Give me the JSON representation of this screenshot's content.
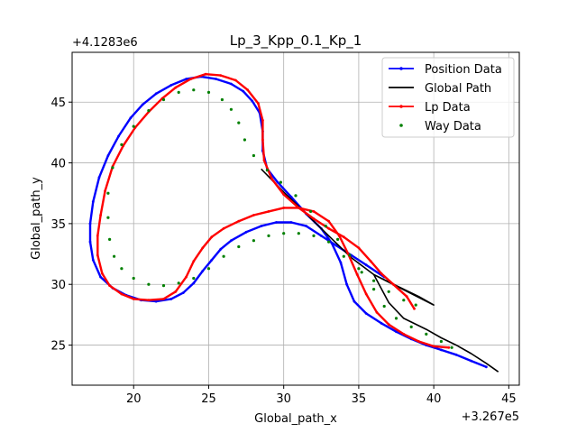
{
  "chart_data": {
    "type": "line",
    "title": "Lp_3_Kpp_0.1_Kp_1",
    "xlabel": "Global_path_x",
    "ylabel": "Global_path_y",
    "x_offset_label": "+3.267e5",
    "y_offset_label": "+4.1283e6",
    "xlim": [
      15.9,
      45.7
    ],
    "ylim": [
      21.7,
      49.1
    ],
    "xticks": [
      20,
      25,
      30,
      35,
      40,
      45
    ],
    "yticks": [
      25,
      30,
      35,
      40,
      45
    ],
    "grid": true,
    "legend_position": "top-right",
    "series": [
      {
        "name": "Position Data",
        "color": "#0000ff",
        "style": "line-markers",
        "points": [
          [
            36.7,
            30.6
          ],
          [
            35.5,
            31.6
          ],
          [
            34.5,
            32.4
          ],
          [
            33.5,
            33.2
          ],
          [
            32.5,
            34.0
          ],
          [
            31.5,
            34.8
          ],
          [
            30.5,
            35.1
          ],
          [
            29.5,
            35.1
          ],
          [
            28.5,
            34.8
          ],
          [
            27.5,
            34.3
          ],
          [
            26.5,
            33.6
          ],
          [
            25.8,
            32.9
          ],
          [
            25.2,
            32.0
          ],
          [
            24.6,
            31.1
          ],
          [
            24.0,
            30.1
          ],
          [
            23.3,
            29.3
          ],
          [
            22.5,
            28.8
          ],
          [
            21.5,
            28.6
          ],
          [
            20.5,
            28.7
          ],
          [
            19.5,
            29.1
          ],
          [
            18.6,
            29.7
          ],
          [
            17.8,
            30.6
          ],
          [
            17.3,
            32.0
          ],
          [
            17.1,
            33.5
          ],
          [
            17.1,
            35.0
          ],
          [
            17.3,
            36.8
          ],
          [
            17.7,
            38.8
          ],
          [
            18.3,
            40.6
          ],
          [
            19.0,
            42.2
          ],
          [
            19.8,
            43.7
          ],
          [
            20.6,
            44.8
          ],
          [
            21.5,
            45.7
          ],
          [
            22.5,
            46.4
          ],
          [
            23.5,
            46.9
          ],
          [
            24.5,
            47.1
          ],
          [
            25.5,
            46.9
          ],
          [
            26.5,
            46.5
          ],
          [
            27.3,
            45.9
          ],
          [
            27.9,
            45.1
          ],
          [
            28.4,
            44.1
          ],
          [
            28.6,
            42.6
          ],
          [
            28.6,
            41.0
          ],
          [
            28.9,
            39.5
          ],
          [
            29.6,
            38.4
          ],
          [
            30.5,
            37.2
          ],
          [
            31.5,
            35.8
          ],
          [
            32.5,
            34.6
          ],
          [
            33.2,
            33.4
          ],
          [
            33.8,
            31.8
          ],
          [
            34.2,
            30.0
          ],
          [
            34.7,
            28.6
          ],
          [
            35.5,
            27.6
          ],
          [
            36.5,
            26.8
          ],
          [
            37.5,
            26.1
          ],
          [
            38.5,
            25.5
          ],
          [
            39.5,
            25.0
          ],
          [
            40.5,
            24.6
          ],
          [
            41.5,
            24.2
          ],
          [
            42.5,
            23.7
          ],
          [
            43.5,
            23.2
          ]
        ]
      },
      {
        "name": "Global Path",
        "color": "#000000",
        "style": "line",
        "points": [
          [
            28.5,
            39.5
          ],
          [
            30.0,
            37.6
          ],
          [
            31.5,
            35.8
          ],
          [
            33.0,
            34.0
          ],
          [
            34.5,
            32.2
          ],
          [
            36.0,
            30.8
          ],
          [
            37.5,
            29.9
          ],
          [
            39.0,
            29.0
          ],
          [
            40.0,
            28.3
          ],
          [
            36.0,
            30.8
          ],
          [
            37.0,
            28.5
          ],
          [
            38.0,
            27.2
          ],
          [
            39.5,
            26.3
          ],
          [
            40.5,
            25.6
          ],
          [
            41.5,
            25.0
          ],
          [
            42.5,
            24.3
          ],
          [
            43.5,
            23.5
          ],
          [
            44.3,
            22.8
          ]
        ]
      },
      {
        "name": "Lp Data",
        "color": "#ff0000",
        "style": "line-markers",
        "points": [
          [
            41.0,
            24.8
          ],
          [
            40.0,
            24.9
          ],
          [
            39.0,
            25.3
          ],
          [
            38.0,
            25.9
          ],
          [
            37.0,
            26.7
          ],
          [
            36.2,
            27.7
          ],
          [
            35.5,
            29.2
          ],
          [
            34.9,
            30.8
          ],
          [
            34.3,
            32.5
          ],
          [
            33.7,
            34.0
          ],
          [
            33.0,
            35.2
          ],
          [
            32.0,
            36.0
          ],
          [
            31.0,
            36.3
          ],
          [
            30.0,
            36.3
          ],
          [
            29.0,
            36.0
          ],
          [
            28.0,
            35.7
          ],
          [
            27.0,
            35.2
          ],
          [
            26.0,
            34.6
          ],
          [
            25.2,
            33.9
          ],
          [
            24.6,
            33.0
          ],
          [
            24.0,
            31.9
          ],
          [
            23.5,
            30.6
          ],
          [
            22.8,
            29.4
          ],
          [
            22.0,
            28.8
          ],
          [
            21.0,
            28.7
          ],
          [
            20.0,
            28.8
          ],
          [
            19.2,
            29.2
          ],
          [
            18.4,
            29.9
          ],
          [
            17.9,
            30.9
          ],
          [
            17.6,
            32.4
          ],
          [
            17.6,
            34.0
          ],
          [
            17.8,
            35.7
          ],
          [
            18.1,
            37.7
          ],
          [
            18.6,
            39.7
          ],
          [
            19.3,
            41.4
          ],
          [
            20.1,
            42.9
          ],
          [
            21.0,
            44.2
          ],
          [
            21.9,
            45.3
          ],
          [
            22.8,
            46.2
          ],
          [
            23.8,
            46.9
          ],
          [
            24.8,
            47.3
          ],
          [
            25.8,
            47.2
          ],
          [
            26.8,
            46.8
          ],
          [
            27.6,
            46.0
          ],
          [
            28.3,
            44.9
          ],
          [
            28.6,
            43.5
          ],
          [
            28.6,
            41.9
          ],
          [
            28.7,
            40.2
          ],
          [
            29.2,
            38.7
          ],
          [
            30.0,
            37.4
          ],
          [
            31.0,
            36.3
          ],
          [
            32.0,
            35.4
          ],
          [
            33.0,
            34.6
          ],
          [
            34.0,
            33.9
          ],
          [
            35.0,
            33.0
          ],
          [
            35.8,
            31.9
          ],
          [
            36.5,
            30.9
          ],
          [
            37.3,
            30.0
          ],
          [
            38.2,
            29.0
          ],
          [
            38.7,
            28.0
          ]
        ]
      },
      {
        "name": "Way Data",
        "color": "#008000",
        "style": "markers",
        "points": [
          [
            38.8,
            28.3
          ],
          [
            38.0,
            28.7
          ],
          [
            37.0,
            29.4
          ],
          [
            36.0,
            30.3
          ],
          [
            35.0,
            31.3
          ],
          [
            34.0,
            32.3
          ],
          [
            33.0,
            33.5
          ],
          [
            32.0,
            34.0
          ],
          [
            31.0,
            34.2
          ],
          [
            30.0,
            34.2
          ],
          [
            29.0,
            34.0
          ],
          [
            28.0,
            33.6
          ],
          [
            27.0,
            33.1
          ],
          [
            26.0,
            32.3
          ],
          [
            25.0,
            31.3
          ],
          [
            24.0,
            30.5
          ],
          [
            23.0,
            30.1
          ],
          [
            22.0,
            29.9
          ],
          [
            21.0,
            30.0
          ],
          [
            20.0,
            30.5
          ],
          [
            19.2,
            31.3
          ],
          [
            18.7,
            32.3
          ],
          [
            18.4,
            33.7
          ],
          [
            18.3,
            35.5
          ],
          [
            18.3,
            37.5
          ],
          [
            18.6,
            39.6
          ],
          [
            19.2,
            41.5
          ],
          [
            20.0,
            43.0
          ],
          [
            21.0,
            44.3
          ],
          [
            22.0,
            45.2
          ],
          [
            23.0,
            45.8
          ],
          [
            24.0,
            46.0
          ],
          [
            25.0,
            45.8
          ],
          [
            25.9,
            45.2
          ],
          [
            26.5,
            44.4
          ],
          [
            27.0,
            43.3
          ],
          [
            27.4,
            41.9
          ],
          [
            28.0,
            40.6
          ],
          [
            28.9,
            39.4
          ],
          [
            29.8,
            38.4
          ],
          [
            30.8,
            37.3
          ],
          [
            31.8,
            36.0
          ],
          [
            32.8,
            34.8
          ],
          [
            33.6,
            33.7
          ],
          [
            34.4,
            32.4
          ],
          [
            35.2,
            31.0
          ],
          [
            36.0,
            29.6
          ],
          [
            36.7,
            28.2
          ],
          [
            37.5,
            27.2
          ],
          [
            38.5,
            26.5
          ],
          [
            39.5,
            25.9
          ],
          [
            40.5,
            25.3
          ],
          [
            41.2,
            24.8
          ]
        ]
      }
    ]
  }
}
